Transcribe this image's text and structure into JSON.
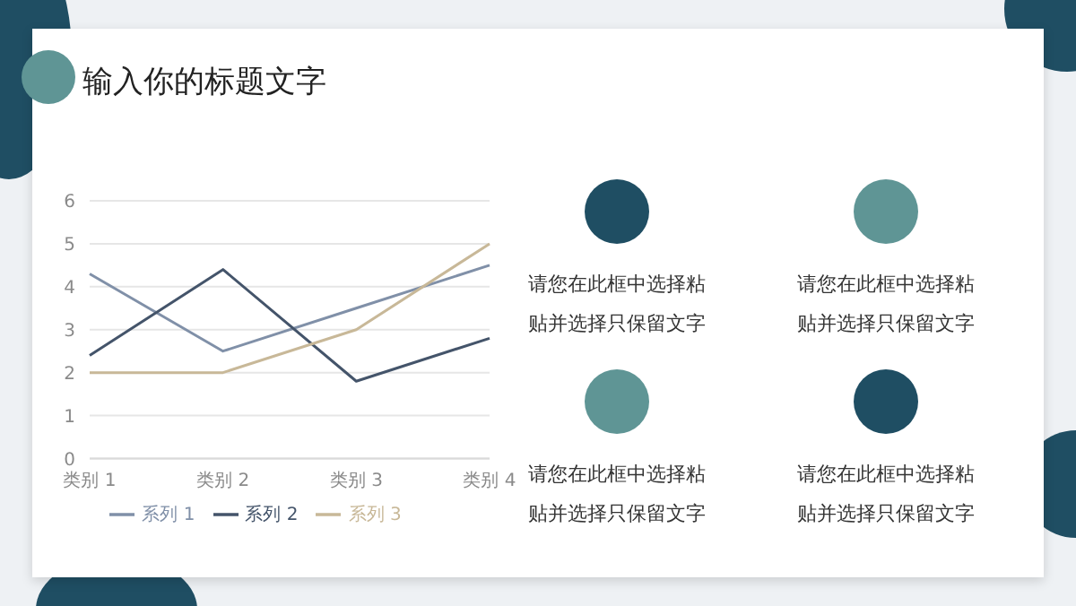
{
  "chart_data": {
    "type": "line",
    "title": "输入你的标题文字",
    "categories": [
      "类别 1",
      "类别 2",
      "类别 3",
      "类别 4"
    ],
    "series": [
      {
        "name": "系列 1",
        "color": "#8090a8",
        "values": [
          4.3,
          2.5,
          3.5,
          4.5
        ]
      },
      {
        "name": "系列 2",
        "color": "#44546a",
        "values": [
          2.4,
          4.4,
          1.8,
          2.8
        ]
      },
      {
        "name": "系列 3",
        "color": "#c8b898",
        "values": [
          2,
          2,
          3,
          5
        ]
      }
    ],
    "ylim": [
      0,
      6
    ],
    "yticks": [
      0,
      1,
      2,
      3,
      4,
      5,
      6
    ],
    "grid": "y",
    "legend": "bottom",
    "marker": "none",
    "line_style": "solid",
    "annotations": [
      "请您在此框中选择粘贴并选择只保留文字",
      "请您在此框中选择粘贴并选择只保留文字",
      "请您在此框中选择粘贴并选择只保留文字",
      "请您在此框中选择粘贴并选择只保留文字"
    ]
  }
}
